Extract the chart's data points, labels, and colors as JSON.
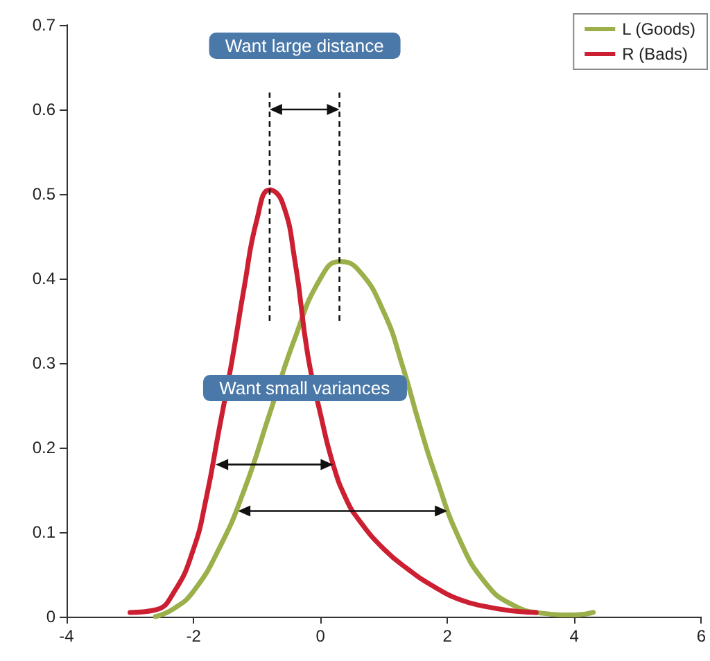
{
  "chart_data": {
    "type": "line",
    "xlim": [
      -4,
      6
    ],
    "xticks": [
      -4,
      -2,
      0,
      2,
      4,
      6
    ],
    "ylim": [
      0,
      0.7
    ],
    "yticks": [
      0,
      0.1,
      0.2,
      0.3,
      0.4,
      0.5,
      0.6,
      0.7
    ],
    "grid": false,
    "legend": "top right",
    "marker": "none",
    "line_style": "solid",
    "annotations": [
      "Want large distance",
      "Want small variances"
    ],
    "series": [
      {
        "name": "L (Goods)",
        "color": "#9bb04a",
        "x": [
          -2.6,
          -2.3,
          -2.0,
          -1.6,
          -1.2,
          -0.8,
          -0.4,
          0,
          0.3,
          0.6,
          1.0,
          1.3,
          1.55,
          1.8,
          2.2,
          2.6,
          3.0,
          3.5,
          4.0,
          4.3
        ],
        "values": [
          0,
          0.01,
          0.03,
          0.08,
          0.15,
          0.24,
          0.33,
          0.4,
          0.42,
          0.41,
          0.36,
          0.295,
          0.23,
          0.17,
          0.09,
          0.04,
          0.015,
          0.004,
          0.002,
          0.005
        ]
      },
      {
        "name": "R (Bads)",
        "color": "#cc1f32",
        "x": [
          -3,
          -2.6,
          -2.3,
          -2.0,
          -1.8,
          -1.6,
          -1.4,
          -1.2,
          -1.0,
          -0.8,
          -0.6,
          -0.4,
          -0.2,
          0,
          0.2,
          0.4,
          0.6,
          1.0,
          1.4,
          1.8,
          2.2,
          2.6,
          3.0,
          3.4
        ],
        "values": [
          0.005,
          0.008,
          0.03,
          0.08,
          0.14,
          0.22,
          0.3,
          0.39,
          0.47,
          0.505,
          0.49,
          0.42,
          0.31,
          0.24,
          0.18,
          0.14,
          0.115,
          0.08,
          0.055,
          0.035,
          0.02,
          0.012,
          0.007,
          0.005
        ]
      }
    ]
  }
}
